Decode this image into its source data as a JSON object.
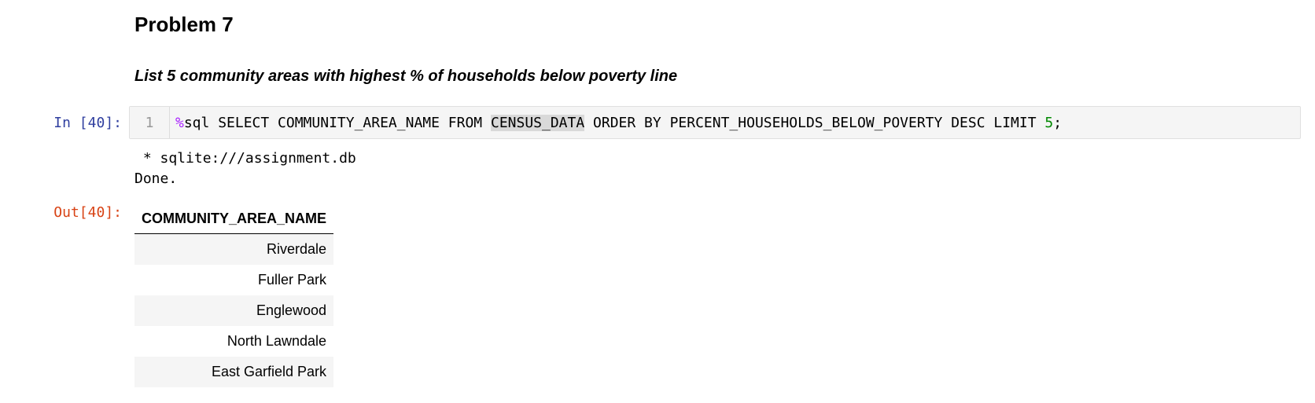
{
  "markdown": {
    "heading": "Problem 7",
    "subheading": "List 5 community areas with highest % of households below poverty line"
  },
  "code_cell": {
    "prompt": "In [40]:",
    "line_number": "1",
    "tokens": {
      "magic": "%",
      "part1": "sql SELECT COMMUNITY_AREA_NAME FROM ",
      "highlighted": "CENSUS_DATA",
      "part2": " ORDER BY PERCENT_HOUSEHOLDS_BELOW_POVERTY DESC LIMIT ",
      "number": "5",
      "end": ";"
    }
  },
  "stdout": {
    "line1": " * sqlite:///assignment.db",
    "line2": "Done."
  },
  "output": {
    "prompt": "Out[40]:",
    "table": {
      "columns": [
        "COMMUNITY_AREA_NAME"
      ],
      "rows": [
        "Riverdale",
        "Fuller Park",
        "Englewood",
        "North Lawndale",
        "East Garfield Park"
      ]
    }
  }
}
